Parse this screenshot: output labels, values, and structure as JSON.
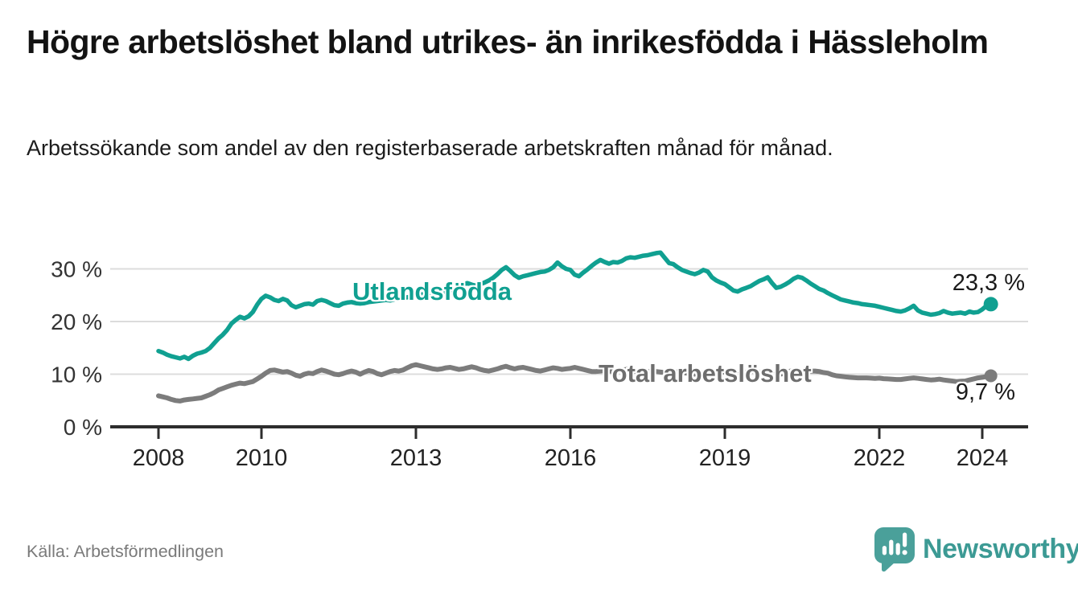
{
  "header": {
    "title": "Högre arbetslöshet bland utrikes- än inrikesfödda i Hässleholm",
    "subtitle": "Arbetssökande som andel av den registerbaserade arbetskraften månad för månad."
  },
  "footer": {
    "source": "Källa: Arbetsförmedlingen",
    "logo_text": "Newsworthy"
  },
  "colors": {
    "accent_teal": "#10a091",
    "series_gray": "#7c7c7c",
    "logo_teal": "#4aa09a",
    "wordmark_teal": "#3c9a94",
    "gridline": "#dcdcdc",
    "axis": "#2d2d2d",
    "tick_label": "#222222"
  },
  "chart_data": {
    "type": "line",
    "title": "Högre arbetslöshet bland utrikes- än inrikesfödda i Hässleholm",
    "subtitle": "Arbetssökande som andel av den registerbaserade arbetskraften månad för månad.",
    "x_unit": "year, monthly resolution",
    "xlim": [
      2007.6,
      2024.9
    ],
    "ylim": [
      0,
      35
    ],
    "grid": "horizontal gridlines at y ticks, x axis line at 0",
    "legend_position": "inline labels on lines, end-value annotations at right",
    "x_ticks": [
      {
        "value": 2008,
        "label": "2008"
      },
      {
        "value": 2010,
        "label": "2010"
      },
      {
        "value": 2013,
        "label": "2013"
      },
      {
        "value": 2016,
        "label": "2016"
      },
      {
        "value": 2019,
        "label": "2019"
      },
      {
        "value": 2022,
        "label": "2022"
      },
      {
        "value": 2024,
        "label": "2024"
      }
    ],
    "y_ticks": [
      {
        "value": 0,
        "label": "0 %"
      },
      {
        "value": 10,
        "label": "10 %"
      },
      {
        "value": 20,
        "label": "20 %"
      },
      {
        "value": 30,
        "label": "30 %"
      }
    ],
    "series": [
      {
        "name": "Utlandsfödda",
        "color": "#10a091",
        "stroke_width": 5.5,
        "end_dot_radius": 9,
        "start_year": 2008,
        "frequency": "monthly",
        "end_value": 23.3,
        "end_label": "23,3 %",
        "values_monthly": [
          14.4,
          14.1,
          13.7,
          13.4,
          13.2,
          13.0,
          13.3,
          12.9,
          13.5,
          13.9,
          14.1,
          14.4,
          15.0,
          15.9,
          16.8,
          17.5,
          18.4,
          19.6,
          20.3,
          20.9,
          20.6,
          21.0,
          21.8,
          23.2,
          24.3,
          24.9,
          24.6,
          24.1,
          23.9,
          24.3,
          24.0,
          23.1,
          22.7,
          23.0,
          23.3,
          23.4,
          23.2,
          23.9,
          24.1,
          23.9,
          23.5,
          23.1,
          23.0,
          23.4,
          23.6,
          23.7,
          23.5,
          23.4,
          23.5,
          23.7,
          23.8,
          23.9,
          24.0,
          24.1,
          24.0,
          24.2,
          24.4,
          24.5,
          24.6,
          24.8,
          25.0,
          25.2,
          25.1,
          25.3,
          25.4,
          25.3,
          25.5,
          25.7,
          25.9,
          26.2,
          26.7,
          27.1,
          27.3,
          27.0,
          26.8,
          27.1,
          27.4,
          27.8,
          28.3,
          29.0,
          29.8,
          30.3,
          29.6,
          28.8,
          28.3,
          28.6,
          28.8,
          29.0,
          29.2,
          29.4,
          29.5,
          29.8,
          30.3,
          31.2,
          30.5,
          30.0,
          29.8,
          28.9,
          28.6,
          29.3,
          29.9,
          30.6,
          31.2,
          31.7,
          31.3,
          31.0,
          31.3,
          31.2,
          31.5,
          32.0,
          32.2,
          32.1,
          32.3,
          32.5,
          32.6,
          32.8,
          33.0,
          33.1,
          32.1,
          31.1,
          30.9,
          30.3,
          29.8,
          29.5,
          29.2,
          29.0,
          29.3,
          29.8,
          29.5,
          28.4,
          27.8,
          27.4,
          27.1,
          26.5,
          25.9,
          25.7,
          26.1,
          26.4,
          26.7,
          27.2,
          27.7,
          28.0,
          28.4,
          27.3,
          26.4,
          26.6,
          27.0,
          27.5,
          28.1,
          28.5,
          28.3,
          27.8,
          27.2,
          26.7,
          26.2,
          25.9,
          25.4,
          25.0,
          24.6,
          24.2,
          24.0,
          23.8,
          23.6,
          23.5,
          23.3,
          23.2,
          23.1,
          23.0,
          22.8,
          22.6,
          22.4,
          22.2,
          22.0,
          21.9,
          22.1,
          22.5,
          23.0,
          22.1,
          21.7,
          21.5,
          21.3,
          21.4,
          21.6,
          22.0,
          21.7,
          21.5,
          21.6,
          21.7,
          21.5,
          21.9,
          21.7,
          21.8,
          22.3,
          23.0,
          23.3
        ]
      },
      {
        "name": "Total arbetslöshet",
        "color": "#7c7c7c",
        "stroke_width": 6,
        "end_dot_radius": 8,
        "start_year": 2008,
        "frequency": "monthly",
        "end_value": 9.7,
        "end_label": "9,7 %",
        "values_monthly": [
          5.9,
          5.7,
          5.5,
          5.2,
          5.0,
          4.9,
          5.1,
          5.2,
          5.3,
          5.4,
          5.5,
          5.8,
          6.1,
          6.5,
          7.0,
          7.3,
          7.6,
          7.9,
          8.1,
          8.3,
          8.2,
          8.4,
          8.6,
          9.1,
          9.6,
          10.2,
          10.7,
          10.8,
          10.6,
          10.4,
          10.5,
          10.2,
          9.8,
          9.6,
          10.0,
          10.2,
          10.1,
          10.5,
          10.8,
          10.6,
          10.3,
          10.0,
          9.9,
          10.1,
          10.4,
          10.6,
          10.4,
          10.0,
          10.4,
          10.7,
          10.5,
          10.1,
          9.9,
          10.2,
          10.5,
          10.7,
          10.6,
          10.8,
          11.2,
          11.6,
          11.8,
          11.6,
          11.4,
          11.2,
          11.0,
          10.9,
          11.0,
          11.2,
          11.3,
          11.1,
          10.9,
          11.0,
          11.2,
          11.4,
          11.2,
          10.9,
          10.7,
          10.6,
          10.8,
          11.0,
          11.3,
          11.5,
          11.2,
          11.0,
          11.2,
          11.3,
          11.1,
          10.9,
          10.7,
          10.6,
          10.8,
          11.0,
          11.2,
          11.1,
          10.9,
          11.0,
          11.1,
          11.3,
          11.1,
          10.9,
          10.7,
          10.5,
          10.5,
          10.6,
          10.7,
          10.6,
          10.5,
          10.6,
          10.8,
          10.9,
          10.8,
          10.6,
          10.5,
          10.4,
          10.5,
          10.6,
          10.5,
          10.4,
          10.3,
          10.4,
          10.5,
          10.4,
          10.3,
          10.2,
          10.1,
          10.0,
          10.1,
          10.3,
          10.4,
          10.3,
          10.2,
          10.3,
          10.4,
          10.3,
          10.1,
          10.0,
          10.2,
          10.4,
          10.6,
          10.5,
          10.4,
          10.3,
          10.2,
          10.1,
          10.0,
          10.0,
          10.2,
          10.5,
          10.8,
          10.7,
          10.6,
          10.7,
          10.6,
          10.6,
          10.5,
          10.3,
          10.2,
          9.9,
          9.7,
          9.6,
          9.5,
          9.4,
          9.35,
          9.3,
          9.3,
          9.3,
          9.25,
          9.2,
          9.25,
          9.15,
          9.1,
          9.05,
          9.0,
          9.0,
          9.1,
          9.2,
          9.3,
          9.2,
          9.1,
          9.0,
          8.9,
          8.95,
          9.05,
          8.9,
          8.8,
          8.7,
          8.6,
          8.65,
          8.7,
          8.9,
          9.1,
          9.3,
          9.4,
          9.55,
          9.7
        ]
      }
    ]
  }
}
